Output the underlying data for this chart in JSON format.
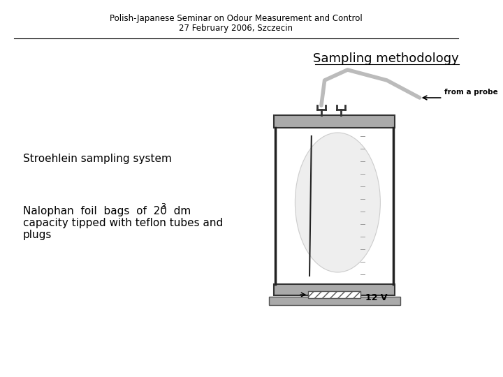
{
  "header_line1": "Polish-Japanese Seminar on Odour Measurement and Control",
  "header_line2": "27 February 2006, Szczecin",
  "section_title": "Sampling methodology",
  "text1": "Stroehlein sampling system",
  "text2_line1": "Nalophan  foil  bags  of  20  dm",
  "text2_superscript": "3",
  "text2_line2": "capacity tipped with teflon tubes and",
  "text2_line3": "plugs",
  "probe_label": "from a probe",
  "voltage_label": "12 V",
  "bg_color": "#ffffff",
  "header_color": "#000000",
  "title_color": "#000000",
  "body_color": "#000000",
  "diagram_gray": "#aaaaaa",
  "diagram_dark": "#333333",
  "diagram_hatch": "#555555"
}
